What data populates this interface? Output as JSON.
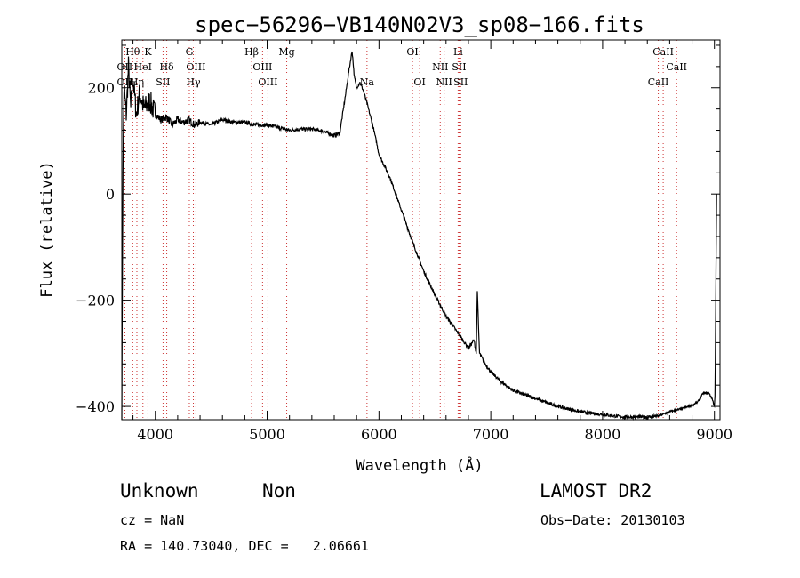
{
  "chart_data": {
    "type": "line",
    "title": "spec−56296−VB140N02V3_sp08−166.fits",
    "xlabel": "Wavelength (Å)",
    "ylabel": "Flux (relative)",
    "xlim": [
      3700,
      9050
    ],
    "ylim": [
      -425,
      290
    ],
    "xticks": [
      4000,
      5000,
      6000,
      7000,
      8000,
      9000
    ],
    "yticks": [
      -400,
      -200,
      0,
      200
    ],
    "grid": false,
    "line_color": "#000000",
    "marker_color": "#cc3333",
    "series": [
      {
        "x": [
          3700,
          3710,
          3720,
          3740,
          3760,
          3780,
          3800,
          3830,
          3860,
          3900,
          3950,
          4000,
          4050,
          4100,
          4150,
          4200,
          4250,
          4300,
          4350,
          4400,
          4500,
          4600,
          4700,
          4800,
          4900,
          5000,
          5100,
          5200,
          5300,
          5400,
          5500,
          5600,
          5650,
          5700,
          5730,
          5760,
          5780,
          5800,
          5830,
          5860,
          5900,
          5950,
          6000,
          6100,
          6200,
          6300,
          6400,
          6500,
          6600,
          6700,
          6800,
          6850,
          6870,
          6880,
          6890,
          6900,
          6950,
          7000,
          7100,
          7200,
          7300,
          7400,
          7500,
          7600,
          7700,
          7800,
          7900,
          8000,
          8100,
          8200,
          8300,
          8400,
          8500,
          8600,
          8700,
          8800,
          8850,
          8900,
          8950,
          8980,
          9000,
          9005,
          9010,
          9015,
          9020
        ],
        "y": [
          -420,
          50,
          200,
          150,
          240,
          160,
          220,
          150,
          190,
          160,
          175,
          150,
          140,
          145,
          130,
          140,
          135,
          140,
          130,
          135,
          130,
          140,
          135,
          135,
          130,
          130,
          125,
          120,
          122,
          122,
          118,
          110,
          115,
          185,
          230,
          270,
          220,
          200,
          210,
          195,
          165,
          125,
          75,
          30,
          -30,
          -90,
          -145,
          -190,
          -230,
          -260,
          -290,
          -275,
          -300,
          -180,
          -250,
          -300,
          -320,
          -335,
          -355,
          -370,
          -378,
          -385,
          -393,
          -400,
          -405,
          -410,
          -413,
          -415,
          -418,
          -420,
          -420,
          -420,
          -418,
          -410,
          -405,
          -398,
          -392,
          -375,
          -375,
          -385,
          -400,
          -380,
          -250,
          -120,
          0
        ]
      }
    ],
    "lines": [
      {
        "name": "Hθ",
        "x": 3798,
        "row": 1
      },
      {
        "name": "K",
        "x": 3934,
        "row": 1
      },
      {
        "name": "G",
        "x": 4304,
        "row": 1
      },
      {
        "name": "Hβ",
        "x": 4861,
        "row": 1
      },
      {
        "name": "Mg",
        "x": 5175,
        "row": 1
      },
      {
        "name": "OI",
        "x": 6300,
        "row": 1
      },
      {
        "name": "Li",
        "x": 6708,
        "row": 1
      },
      {
        "name": "CaII",
        "x": 8542,
        "row": 1
      },
      {
        "name": "OII",
        "x": 3727,
        "row": 2
      },
      {
        "name": "HeI",
        "x": 3889,
        "row": 2
      },
      {
        "name": "Hδ",
        "x": 4102,
        "row": 2
      },
      {
        "name": "OIII",
        "x": 4363,
        "row": 2
      },
      {
        "name": "OIII",
        "x": 4959,
        "row": 2
      },
      {
        "name": "OI",
        "x": 6364,
        "row": 3
      },
      {
        "name": "NII",
        "x": 6548,
        "row": 2
      },
      {
        "name": "SII",
        "x": 6717,
        "row": 2
      },
      {
        "name": "CaII",
        "x": 8662,
        "row": 2
      },
      {
        "name": "OII",
        "x": 3727,
        "row": 3
      },
      {
        "name": "Hη",
        "x": 3835,
        "row": 3
      },
      {
        "name": "SII",
        "x": 4069,
        "row": 3
      },
      {
        "name": "Hγ",
        "x": 4340,
        "row": 3
      },
      {
        "name": "OIII",
        "x": 5007,
        "row": 3
      },
      {
        "name": "Na",
        "x": 5893,
        "row": 3
      },
      {
        "name": "NII",
        "x": 6583,
        "row": 3
      },
      {
        "name": "SII",
        "x": 6731,
        "row": 3
      },
      {
        "name": "CaII",
        "x": 8498,
        "row": 3
      }
    ]
  },
  "info": {
    "object_class": "Unknown",
    "subclass": "Non",
    "survey": "LAMOST DR2",
    "redshift": "cz = NaN",
    "obs_date": "Obs−Date: 20130103",
    "coords": "RA = 140.73040, DEC =   2.06661"
  }
}
